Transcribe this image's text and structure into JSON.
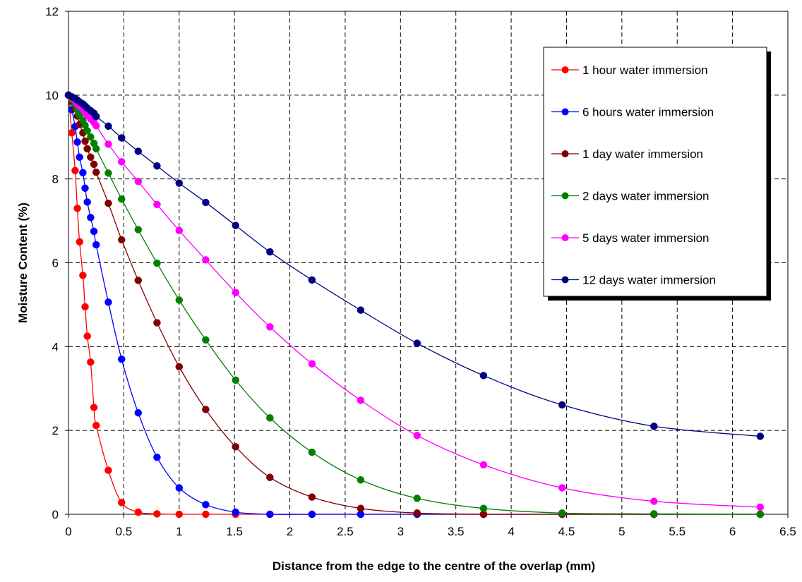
{
  "chart_data": {
    "type": "line",
    "title": "",
    "xlabel": "Distance from the edge to the centre of the overlap (mm)",
    "ylabel": "Moisture Content (%)",
    "xlim": [
      0,
      6.5
    ],
    "ylim": [
      0,
      12
    ],
    "x_ticks": [
      "0",
      "0.5",
      "1",
      "1.5",
      "2",
      "2.5",
      "3",
      "3.5",
      "4",
      "4.5",
      "5",
      "5.5",
      "6",
      "6.5"
    ],
    "y_ticks": [
      "0",
      "2",
      "4",
      "6",
      "8",
      "10",
      "12"
    ],
    "grid": true,
    "legend_position": "top-right",
    "series": [
      {
        "name": "1 hour water immersion",
        "color": "#ff0000",
        "x": [
          0,
          0.03,
          0.06,
          0.08,
          0.1,
          0.13,
          0.15,
          0.17,
          0.2,
          0.23,
          0.25,
          0.36,
          0.48,
          0.63,
          0.8,
          1.0,
          1.24,
          1.51,
          1.82,
          2.2,
          2.64,
          3.15,
          3.75,
          4.46,
          5.29,
          6.25
        ],
        "y": [
          10.0,
          9.1,
          8.2,
          7.3,
          6.5,
          5.7,
          4.95,
          4.25,
          3.63,
          2.55,
          2.12,
          1.05,
          0.28,
          0.05,
          0.01,
          0,
          0,
          0,
          0,
          0,
          0,
          0,
          0,
          0,
          0,
          0
        ]
      },
      {
        "name": "6 hours water immersion",
        "color": "#0000ff",
        "x": [
          0,
          0.03,
          0.06,
          0.08,
          0.1,
          0.13,
          0.15,
          0.17,
          0.2,
          0.23,
          0.25,
          0.36,
          0.48,
          0.63,
          0.8,
          1.0,
          1.24,
          1.51,
          1.82,
          2.2,
          2.64,
          3.15,
          3.75,
          4.46,
          5.29,
          6.25
        ],
        "y": [
          10.0,
          9.65,
          9.25,
          8.88,
          8.52,
          8.15,
          7.78,
          7.45,
          7.08,
          6.75,
          6.43,
          5.06,
          3.7,
          2.42,
          1.36,
          0.63,
          0.23,
          0.05,
          0,
          0,
          0,
          0,
          0,
          0,
          0,
          0
        ]
      },
      {
        "name": "1 day water immersion",
        "color": "#800000",
        "x": [
          0,
          0.03,
          0.06,
          0.08,
          0.1,
          0.13,
          0.15,
          0.17,
          0.2,
          0.23,
          0.25,
          0.36,
          0.48,
          0.63,
          0.8,
          1.0,
          1.24,
          1.51,
          1.82,
          2.2,
          2.64,
          3.15,
          3.75,
          4.46,
          5.29,
          6.25
        ],
        "y": [
          10.0,
          9.85,
          9.68,
          9.5,
          9.3,
          9.1,
          8.9,
          8.72,
          8.52,
          8.35,
          8.16,
          7.42,
          6.55,
          5.58,
          4.57,
          3.52,
          2.5,
          1.61,
          0.88,
          0.41,
          0.14,
          0.03,
          0,
          0,
          0,
          0
        ]
      },
      {
        "name": "2 days water immersion",
        "color": "#008000",
        "x": [
          0,
          0.03,
          0.06,
          0.08,
          0.1,
          0.13,
          0.15,
          0.17,
          0.2,
          0.23,
          0.25,
          0.36,
          0.48,
          0.63,
          0.8,
          1.0,
          1.24,
          1.51,
          1.82,
          2.2,
          2.64,
          3.15,
          3.75,
          4.46,
          5.29,
          6.25
        ],
        "y": [
          10.0,
          9.9,
          9.78,
          9.65,
          9.53,
          9.4,
          9.28,
          9.15,
          9.0,
          8.85,
          8.72,
          8.14,
          7.52,
          6.79,
          5.99,
          5.11,
          4.16,
          3.2,
          2.3,
          1.48,
          0.82,
          0.38,
          0.14,
          0.03,
          0.01,
          0
        ]
      },
      {
        "name": "5 days water immersion",
        "color": "#ff00ff",
        "x": [
          0,
          0.03,
          0.06,
          0.08,
          0.1,
          0.13,
          0.15,
          0.17,
          0.2,
          0.23,
          0.25,
          0.36,
          0.48,
          0.63,
          0.8,
          1.0,
          1.24,
          1.51,
          1.82,
          2.2,
          2.64,
          3.15,
          3.75,
          4.46,
          5.29,
          6.25
        ],
        "y": [
          10.0,
          9.94,
          9.87,
          9.8,
          9.73,
          9.66,
          9.59,
          9.51,
          9.43,
          9.35,
          9.27,
          8.83,
          8.41,
          7.94,
          7.39,
          6.77,
          6.07,
          5.29,
          4.47,
          3.59,
          2.72,
          1.88,
          1.18,
          0.63,
          0.31,
          0.17
        ]
      },
      {
        "name": "12 days water immersion",
        "color": "#000080",
        "x": [
          0,
          0.03,
          0.06,
          0.08,
          0.1,
          0.13,
          0.15,
          0.17,
          0.2,
          0.23,
          0.25,
          0.36,
          0.48,
          0.63,
          0.8,
          1.0,
          1.24,
          1.51,
          1.82,
          2.2,
          2.64,
          3.15,
          3.75,
          4.46,
          5.29,
          6.25
        ],
        "y": [
          10.0,
          9.96,
          9.92,
          9.88,
          9.84,
          9.79,
          9.74,
          9.69,
          9.63,
          9.57,
          9.49,
          9.26,
          8.98,
          8.66,
          8.31,
          7.9,
          7.44,
          6.89,
          6.26,
          5.59,
          4.87,
          4.08,
          3.31,
          2.61,
          2.1,
          1.86
        ]
      }
    ]
  }
}
